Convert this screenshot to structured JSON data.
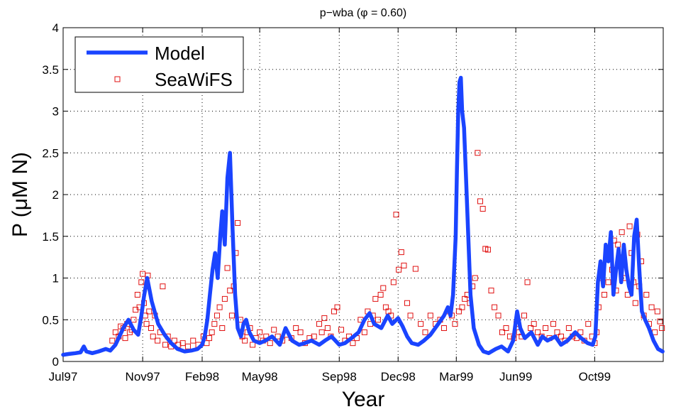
{
  "chart_data": {
    "type": "line",
    "title": "p−wba (φ = 0.60)",
    "xlabel": "Year",
    "ylabel": "P (μM N)",
    "xlim": [
      "1997-07-01",
      "2000-01-15"
    ],
    "ylim": [
      0,
      4
    ],
    "yticks": [
      0,
      0.5,
      1,
      1.5,
      2,
      2.5,
      3,
      3.5,
      4
    ],
    "ytick_labels": [
      "0",
      "0.5",
      "1",
      "1.5",
      "2",
      "2.5",
      "3",
      "3.5",
      "4"
    ],
    "xticks": [
      "1997-07-01",
      "1997-11-01",
      "1998-02-01",
      "1998-05-01",
      "1998-09-01",
      "1998-12-01",
      "1999-03-01",
      "1999-06-01",
      "1999-10-01"
    ],
    "xtick_labels": [
      "Jul97",
      "Nov97",
      "Feb98",
      "May98",
      "Sep98",
      "Dec98",
      "Mar99",
      "Jun99",
      "Oct99"
    ],
    "grid": true,
    "legend": "top-left",
    "colors": {
      "model": "#1a44ff",
      "seawifs": "#e01010"
    },
    "series": [
      {
        "name": "Model",
        "style": "line",
        "x": [
          "1997-07-01",
          "1997-07-10",
          "1997-07-20",
          "1997-07-28",
          "1997-08-02",
          "1997-08-06",
          "1997-08-15",
          "1997-08-25",
          "1997-09-05",
          "1997-09-12",
          "1997-09-20",
          "1997-09-26",
          "1997-10-02",
          "1997-10-10",
          "1997-10-18",
          "1997-10-25",
          "1997-10-30",
          "1997-11-03",
          "1997-11-08",
          "1997-11-15",
          "1997-11-25",
          "1997-12-05",
          "1997-12-15",
          "1997-12-25",
          "1998-01-05",
          "1998-01-15",
          "1998-01-25",
          "1998-02-01",
          "1998-02-05",
          "1998-02-09",
          "1998-02-13",
          "1998-02-17",
          "1998-02-21",
          "1998-02-25",
          "1998-03-01",
          "1998-03-04",
          "1998-03-08",
          "1998-03-12",
          "1998-03-16",
          "1998-03-20",
          "1998-03-24",
          "1998-03-28",
          "1998-04-02",
          "1998-04-06",
          "1998-04-10",
          "1998-04-15",
          "1998-04-22",
          "1998-05-01",
          "1998-05-10",
          "1998-05-20",
          "1998-06-01",
          "1998-06-10",
          "1998-06-20",
          "1998-07-01",
          "1998-07-10",
          "1998-07-20",
          "1998-08-01",
          "1998-08-10",
          "1998-08-20",
          "1998-09-01",
          "1998-09-10",
          "1998-09-20",
          "1998-10-01",
          "1998-10-10",
          "1998-10-18",
          "1998-10-25",
          "1998-11-05",
          "1998-11-15",
          "1998-11-22",
          "1998-12-01",
          "1998-12-08",
          "1998-12-15",
          "1998-12-22",
          "1999-01-01",
          "1999-01-10",
          "1999-01-20",
          "1999-02-01",
          "1999-02-10",
          "1999-02-16",
          "1999-02-20",
          "1999-02-24",
          "1999-02-28",
          "1999-03-02",
          "1999-03-04",
          "1999-03-06",
          "1999-03-08",
          "1999-03-10",
          "1999-03-13",
          "1999-03-16",
          "1999-03-19",
          "1999-03-23",
          "1999-03-28",
          "1999-04-05",
          "1999-04-12",
          "1999-04-20",
          "1999-05-01",
          "1999-05-10",
          "1999-05-20",
          "1999-05-28",
          "1999-06-03",
          "1999-06-08",
          "1999-06-15",
          "1999-06-25",
          "1999-07-05",
          "1999-07-12",
          "1999-07-20",
          "1999-08-01",
          "1999-08-10",
          "1999-08-20",
          "1999-09-01",
          "1999-09-10",
          "1999-09-20",
          "1999-09-28",
          "1999-10-02",
          "1999-10-06",
          "1999-10-10",
          "1999-10-14",
          "1999-10-18",
          "1999-10-22",
          "1999-10-26",
          "1999-10-30",
          "1999-11-03",
          "1999-11-07",
          "1999-11-11",
          "1999-11-15",
          "1999-11-19",
          "1999-11-23",
          "1999-11-27",
          "1999-12-01",
          "1999-12-05",
          "1999-12-09",
          "1999-12-13",
          "1999-12-18",
          "1999-12-24",
          "1999-12-31",
          "2000-01-07",
          "2000-01-14"
        ],
        "y": [
          0.08,
          0.09,
          0.1,
          0.11,
          0.18,
          0.12,
          0.1,
          0.12,
          0.15,
          0.13,
          0.2,
          0.3,
          0.4,
          0.5,
          0.38,
          0.32,
          0.55,
          0.78,
          1.0,
          0.72,
          0.45,
          0.32,
          0.22,
          0.15,
          0.12,
          0.13,
          0.15,
          0.2,
          0.3,
          0.5,
          0.8,
          1.1,
          1.3,
          1.0,
          1.5,
          1.8,
          1.4,
          2.2,
          2.5,
          1.6,
          0.8,
          0.4,
          0.3,
          0.45,
          0.5,
          0.35,
          0.25,
          0.22,
          0.25,
          0.3,
          0.2,
          0.4,
          0.25,
          0.2,
          0.22,
          0.25,
          0.2,
          0.25,
          0.3,
          0.2,
          0.22,
          0.28,
          0.35,
          0.5,
          0.58,
          0.45,
          0.4,
          0.55,
          0.45,
          0.52,
          0.42,
          0.3,
          0.22,
          0.2,
          0.25,
          0.32,
          0.45,
          0.55,
          0.65,
          0.55,
          0.8,
          1.5,
          2.3,
          3.0,
          3.35,
          3.4,
          3.0,
          2.8,
          2.2,
          1.6,
          0.8,
          0.4,
          0.2,
          0.12,
          0.1,
          0.15,
          0.18,
          0.12,
          0.25,
          0.6,
          0.4,
          0.28,
          0.35,
          0.2,
          0.3,
          0.25,
          0.3,
          0.2,
          0.25,
          0.35,
          0.28,
          0.22,
          0.2,
          0.3,
          0.95,
          1.2,
          0.9,
          1.4,
          1.2,
          1.55,
          0.8,
          1.1,
          1.35,
          0.95,
          1.4,
          1.1,
          0.9,
          0.8,
          1.5,
          1.7,
          1.1,
          0.6,
          0.5,
          0.4,
          0.25,
          0.15,
          0.12
        ]
      },
      {
        "name": "SeaWiFS",
        "style": "markers",
        "x": [
          "1997-09-15",
          "1997-09-20",
          "1997-09-25",
          "1997-09-28",
          "1997-10-02",
          "1997-10-05",
          "1997-10-08",
          "1997-10-12",
          "1997-10-15",
          "1997-10-18",
          "1997-10-21",
          "1997-10-24",
          "1997-10-27",
          "1997-10-30",
          "1997-11-01",
          "1997-11-03",
          "1997-11-05",
          "1997-11-07",
          "1997-11-09",
          "1997-11-11",
          "1997-11-14",
          "1997-11-17",
          "1997-11-20",
          "1997-11-24",
          "1997-11-28",
          "1997-12-02",
          "1997-12-06",
          "1997-12-10",
          "1997-12-15",
          "1997-12-20",
          "1997-12-26",
          "1998-01-02",
          "1998-01-10",
          "1998-01-18",
          "1998-01-26",
          "1998-02-03",
          "1998-02-08",
          "1998-02-12",
          "1998-02-16",
          "1998-02-20",
          "1998-02-24",
          "1998-02-28",
          "1998-03-04",
          "1998-03-08",
          "1998-03-12",
          "1998-03-16",
          "1998-03-19",
          "1998-03-22",
          "1998-03-25",
          "1998-03-28",
          "1998-04-01",
          "1998-04-04",
          "1998-04-08",
          "1998-04-12",
          "1998-04-16",
          "1998-04-20",
          "1998-04-25",
          "1998-05-01",
          "1998-05-06",
          "1998-05-11",
          "1998-05-17",
          "1998-05-23",
          "1998-05-29",
          "1998-06-05",
          "1998-06-12",
          "1998-06-19",
          "1998-06-26",
          "1998-07-03",
          "1998-07-10",
          "1998-07-17",
          "1998-07-24",
          "1998-08-01",
          "1998-08-05",
          "1998-08-09",
          "1998-08-14",
          "1998-08-19",
          "1998-08-24",
          "1998-08-29",
          "1998-09-04",
          "1998-09-10",
          "1998-09-16",
          "1998-09-22",
          "1998-09-28",
          "1998-10-04",
          "1998-10-10",
          "1998-10-15",
          "1998-10-19",
          "1998-10-23",
          "1998-10-27",
          "1998-10-31",
          "1998-11-04",
          "1998-11-08",
          "1998-11-12",
          "1998-11-16",
          "1998-11-20",
          "1998-11-24",
          "1998-11-28",
          "1998-12-02",
          "1998-12-06",
          "1998-12-10",
          "1998-12-15",
          "1998-12-20",
          "1998-12-28",
          "1999-01-05",
          "1999-01-12",
          "1999-01-20",
          "1999-01-28",
          "1999-02-04",
          "1999-02-10",
          "1999-02-16",
          "1999-02-22",
          "1999-02-27",
          "1999-03-05",
          "1999-03-10",
          "1999-03-14",
          "1999-03-18",
          "1999-03-22",
          "1999-03-26",
          "1999-03-30",
          "1999-04-03",
          "1999-04-07",
          "1999-04-11",
          "1999-04-15",
          "1999-04-19",
          "1999-04-24",
          "1999-04-29",
          "1999-05-05",
          "1999-05-11",
          "1999-05-17",
          "1999-05-23",
          "1999-05-29",
          "1999-06-02",
          "1999-06-06",
          "1999-06-10",
          "1999-06-14",
          "1999-06-19",
          "1999-06-24",
          "1999-06-29",
          "1999-07-05",
          "1999-07-11",
          "1999-07-17",
          "1999-07-23",
          "1999-07-29",
          "1999-08-04",
          "1999-08-10",
          "1999-08-16",
          "1999-08-22",
          "1999-08-28",
          "1999-09-03",
          "1999-09-09",
          "1999-09-15",
          "1999-09-21",
          "1999-09-27",
          "1999-10-01",
          "1999-10-04",
          "1999-10-07",
          "1999-10-10",
          "1999-10-13",
          "1999-10-16",
          "1999-10-19",
          "1999-10-22",
          "1999-10-25",
          "1999-10-28",
          "1999-10-31",
          "1999-11-03",
          "1999-11-06",
          "1999-11-09",
          "1999-11-12",
          "1999-11-15",
          "1999-11-18",
          "1999-11-21",
          "1999-11-24",
          "1999-11-27",
          "1999-11-30",
          "1999-12-03",
          "1999-12-06",
          "1999-12-09",
          "1999-12-12",
          "1999-12-16",
          "1999-12-20",
          "1999-12-24",
          "1999-12-28",
          "2000-01-02",
          "2000-01-06",
          "2000-01-10",
          "2000-01-13"
        ],
        "y": [
          0.25,
          0.35,
          0.3,
          0.42,
          0.4,
          0.28,
          0.45,
          0.35,
          0.38,
          0.5,
          0.62,
          0.8,
          0.65,
          0.95,
          1.05,
          0.7,
          0.55,
          0.45,
          1.03,
          0.6,
          0.4,
          0.3,
          0.55,
          0.25,
          0.35,
          0.9,
          0.2,
          0.3,
          0.18,
          0.25,
          0.2,
          0.22,
          0.18,
          0.25,
          0.2,
          0.3,
          0.22,
          0.28,
          0.35,
          0.45,
          0.55,
          0.65,
          0.4,
          0.75,
          1.12,
          0.85,
          0.55,
          0.9,
          1.3,
          1.66,
          0.5,
          0.3,
          0.25,
          0.35,
          0.4,
          0.2,
          0.28,
          0.35,
          0.25,
          0.3,
          0.22,
          0.38,
          0.3,
          0.25,
          0.32,
          0.28,
          0.4,
          0.35,
          0.22,
          0.28,
          0.3,
          0.45,
          0.35,
          0.52,
          0.4,
          0.3,
          0.6,
          0.65,
          0.38,
          0.25,
          0.3,
          0.22,
          0.28,
          0.5,
          0.35,
          0.6,
          0.45,
          0.55,
          0.75,
          0.5,
          0.8,
          0.88,
          0.65,
          0.6,
          0.55,
          0.95,
          1.76,
          1.1,
          1.31,
          1.15,
          0.7,
          0.55,
          1.11,
          0.45,
          0.35,
          0.55,
          0.45,
          0.5,
          0.4,
          0.6,
          0.55,
          0.45,
          0.6,
          0.65,
          0.75,
          0.8,
          0.7,
          0.9,
          1.0,
          2.5,
          1.92,
          1.83,
          1.35,
          1.34,
          0.85,
          0.65,
          0.55,
          0.35,
          0.4,
          0.3,
          0.28,
          0.45,
          0.35,
          0.3,
          0.55,
          0.95,
          0.4,
          0.45,
          0.35,
          0.3,
          0.4,
          0.28,
          0.45,
          0.35,
          0.3,
          0.25,
          0.4,
          0.3,
          0.28,
          0.35,
          0.25,
          0.45,
          0.3,
          0.22,
          0.35,
          0.65,
          1.0,
          1.12,
          0.8,
          1.25,
          0.95,
          1.35,
          1.1,
          1.45,
          0.85,
          1.4,
          1.2,
          1.55,
          1.25,
          1.0,
          0.8,
          1.62,
          1.3,
          0.95,
          0.7,
          1.52,
          0.9,
          1.2,
          0.55,
          0.8,
          0.45,
          0.65,
          0.35,
          0.6,
          0.48,
          0.4
        ]
      }
    ]
  }
}
